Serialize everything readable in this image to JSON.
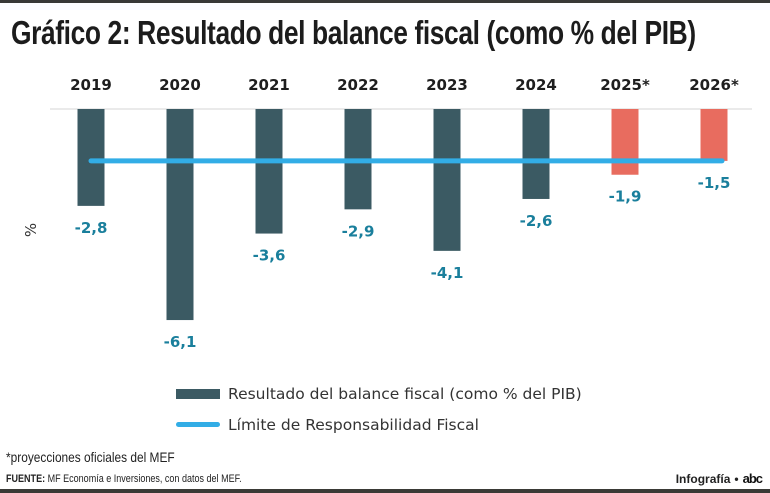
{
  "header": {
    "title": "Gráfico 2: Resultado del balance fiscal (como % del PIB)"
  },
  "colors": {
    "actual_bar": "#3b5a63",
    "projected_bar": "#e86c5f",
    "limit_line": "#32ade6",
    "data_label": "#1a7f9c",
    "axis_line": "#d6d6d6"
  },
  "chart_data": {
    "type": "bar",
    "title": "Gráfico 2: Resultado del balance fiscal (como % del PIB)",
    "xlabel": "",
    "ylabel": "%",
    "categories": [
      "2019",
      "2020",
      "2021",
      "2022",
      "2023",
      "2024",
      "2025*",
      "2026*"
    ],
    "series": [
      {
        "name": "Resultado del balance fiscal (como % del PIB)",
        "type": "bar",
        "values": [
          -2.8,
          -6.1,
          -3.6,
          -2.9,
          -4.1,
          -2.6,
          -1.9,
          -1.5
        ],
        "labels": [
          "-2,8",
          "-6,1",
          "-3,6",
          "-2,9",
          "-4,1",
          "-2,6",
          "-1,9",
          "-1,5"
        ],
        "projected": [
          false,
          false,
          false,
          false,
          false,
          false,
          true,
          true
        ]
      },
      {
        "name": "Límite de Responsabilidad Fiscal",
        "type": "line",
        "values": [
          -1.5,
          -1.5,
          -1.5,
          -1.5,
          -1.5,
          -1.5,
          -1.5,
          -1.5
        ]
      }
    ],
    "ylim": [
      -6.5,
      0
    ],
    "grid": false,
    "category_axis_position": "top",
    "legend_position": "bottom"
  },
  "legend": {
    "items": [
      {
        "label": "Resultado del balance fiscal (como % del PIB)",
        "kind": "bar"
      },
      {
        "label": "Límite de Responsabilidad Fiscal",
        "kind": "line"
      }
    ]
  },
  "footer": {
    "note": "*proyecciones oficiales del MEF",
    "source_label": "FUENTE:",
    "source_text": " MF Economía e Inversiones, con datos del MEF.",
    "credit": "Infografía",
    "bullet": "•",
    "logo": "abc"
  }
}
